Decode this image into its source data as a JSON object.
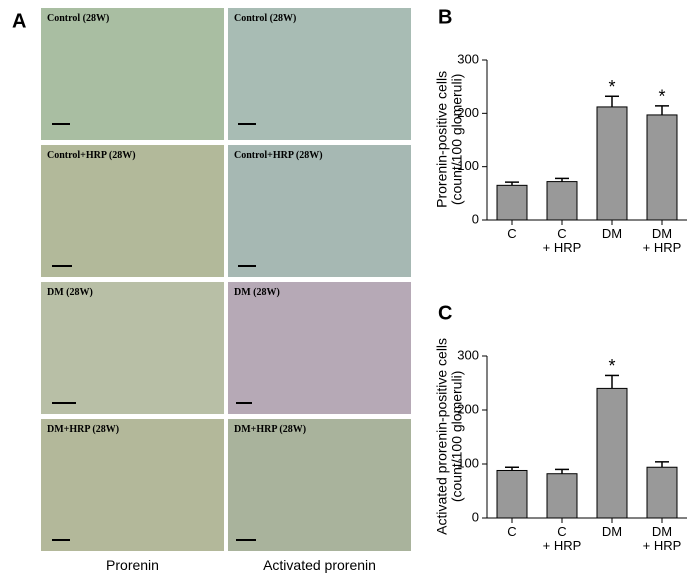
{
  "panel_a": {
    "label": "A",
    "images": [
      [
        "Control (28W)",
        "Control (28W)"
      ],
      [
        "Control+HRP (28W)",
        "Control+HRP (28W)"
      ],
      [
        "DM (28W)",
        "DM (28W)"
      ],
      [
        "DM+HRP (28W)",
        "DM+HRP (28W)"
      ]
    ],
    "columns": [
      "Prorenin",
      "Activated prorenin"
    ]
  },
  "chart_data": [
    {
      "type": "bar",
      "panel_label": "B",
      "y_label": "Prorenin-positive cells\n(count/100 glomeruli)",
      "categories": [
        "C",
        "C\n+ HRP",
        "DM",
        "DM\n+ HRP"
      ],
      "values": [
        65,
        72,
        212,
        197
      ],
      "errors": [
        6,
        6,
        20,
        17
      ],
      "annotations": [
        {
          "category": 2,
          "text": "*"
        },
        {
          "category": 3,
          "text": "*"
        }
      ],
      "color": "#999999",
      "ylim": [
        0,
        300
      ],
      "yticks": [
        0,
        100,
        200,
        300
      ]
    },
    {
      "type": "bar",
      "panel_label": "C",
      "y_label": "Activated prorenin-positive cells\n(count/100 glomeruli)",
      "categories": [
        "C",
        "C\n+ HRP",
        "DM",
        "DM\n+ HRP"
      ],
      "values": [
        88,
        82,
        240,
        94
      ],
      "errors": [
        6,
        8,
        24,
        10
      ],
      "annotations": [
        {
          "category": 2,
          "text": "*"
        }
      ],
      "color": "#999999",
      "ylim": [
        0,
        300
      ],
      "yticks": [
        0,
        100,
        200,
        300
      ]
    }
  ]
}
